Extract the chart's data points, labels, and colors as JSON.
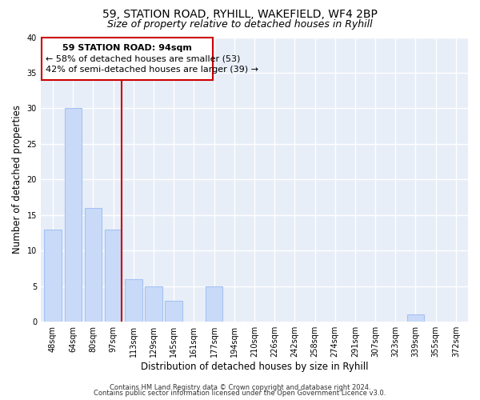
{
  "title": "59, STATION ROAD, RYHILL, WAKEFIELD, WF4 2BP",
  "subtitle": "Size of property relative to detached houses in Ryhill",
  "xlabel": "Distribution of detached houses by size in Ryhill",
  "ylabel": "Number of detached properties",
  "bar_labels": [
    "48sqm",
    "64sqm",
    "80sqm",
    "97sqm",
    "113sqm",
    "129sqm",
    "145sqm",
    "161sqm",
    "177sqm",
    "194sqm",
    "210sqm",
    "226sqm",
    "242sqm",
    "258sqm",
    "274sqm",
    "291sqm",
    "307sqm",
    "323sqm",
    "339sqm",
    "355sqm",
    "372sqm"
  ],
  "bar_values": [
    13,
    30,
    16,
    13,
    6,
    5,
    3,
    0,
    5,
    0,
    0,
    0,
    0,
    0,
    0,
    0,
    0,
    0,
    1,
    0,
    0
  ],
  "bar_color": "#c9daf8",
  "bar_edge_color": "#a4c2f4",
  "background_color": "#ffffff",
  "plot_bg_color": "#e8eef8",
  "grid_color": "#ffffff",
  "marker_line_color": "#cc0000",
  "annotation_box_edge_color": "#cc0000",
  "annotation_box_face_color": "#ffffff",
  "marker_label": "59 STATION ROAD: 94sqm",
  "annotation_line1": "← 58% of detached houses are smaller (53)",
  "annotation_line2": "42% of semi-detached houses are larger (39) →",
  "ylim": [
    0,
    40
  ],
  "yticks": [
    0,
    5,
    10,
    15,
    20,
    25,
    30,
    35,
    40
  ],
  "footer1": "Contains HM Land Registry data © Crown copyright and database right 2024.",
  "footer2": "Contains public sector information licensed under the Open Government Licence v3.0.",
  "title_fontsize": 10,
  "subtitle_fontsize": 9,
  "axis_label_fontsize": 8.5,
  "tick_fontsize": 7,
  "annotation_fontsize": 8,
  "footer_fontsize": 6
}
